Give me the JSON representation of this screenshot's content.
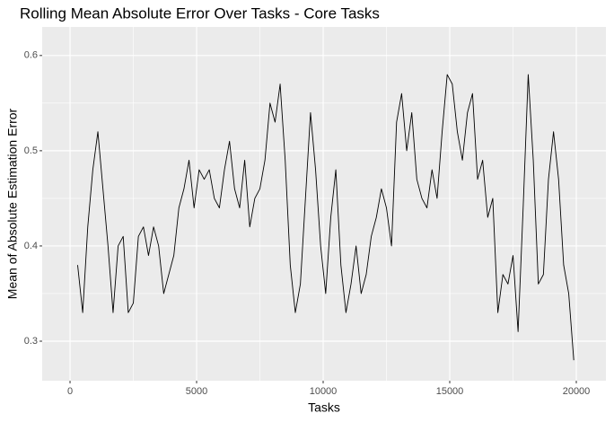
{
  "chart_data": {
    "type": "line",
    "title": "Rolling Mean Absolute Error Over Tasks - Core Tasks",
    "x_label": "Tasks",
    "y_label": "Mean of Absolute Estimation Error",
    "color": "#000000",
    "grid": true,
    "x": [
      300,
      500,
      700,
      900,
      1100,
      1300,
      1500,
      1700,
      1900,
      2100,
      2300,
      2500,
      2700,
      2900,
      3100,
      3300,
      3500,
      3700,
      3900,
      4100,
      4300,
      4500,
      4700,
      4900,
      5100,
      5300,
      5500,
      5700,
      5900,
      6100,
      6300,
      6500,
      6700,
      6900,
      7100,
      7300,
      7500,
      7700,
      7900,
      8100,
      8300,
      8500,
      8700,
      8900,
      9100,
      9300,
      9500,
      9700,
      9900,
      10100,
      10300,
      10500,
      10700,
      10900,
      11100,
      11300,
      11500,
      11700,
      11900,
      12100,
      12300,
      12500,
      12700,
      12900,
      13100,
      13300,
      13500,
      13700,
      13900,
      14100,
      14300,
      14500,
      14700,
      14900,
      15100,
      15300,
      15500,
      15700,
      15900,
      16100,
      16300,
      16500,
      16700,
      16900,
      17100,
      17300,
      17500,
      17700,
      17900,
      18100,
      18300,
      18500,
      18700,
      18900,
      19100,
      19300,
      19500,
      19700,
      19900
    ],
    "values": [
      0.38,
      0.33,
      0.42,
      0.48,
      0.52,
      0.46,
      0.4,
      0.33,
      0.4,
      0.41,
      0.33,
      0.34,
      0.41,
      0.42,
      0.39,
      0.42,
      0.4,
      0.35,
      0.37,
      0.39,
      0.44,
      0.46,
      0.49,
      0.44,
      0.48,
      0.47,
      0.48,
      0.45,
      0.44,
      0.48,
      0.51,
      0.46,
      0.44,
      0.49,
      0.42,
      0.45,
      0.46,
      0.49,
      0.55,
      0.53,
      0.57,
      0.49,
      0.38,
      0.33,
      0.36,
      0.45,
      0.54,
      0.48,
      0.4,
      0.35,
      0.43,
      0.48,
      0.38,
      0.33,
      0.36,
      0.4,
      0.35,
      0.37,
      0.41,
      0.43,
      0.46,
      0.44,
      0.4,
      0.53,
      0.56,
      0.5,
      0.54,
      0.47,
      0.45,
      0.44,
      0.48,
      0.45,
      0.52,
      0.58,
      0.57,
      0.52,
      0.49,
      0.54,
      0.56,
      0.47,
      0.49,
      0.43,
      0.45,
      0.33,
      0.37,
      0.36,
      0.39,
      0.31,
      0.44,
      0.58,
      0.49,
      0.36,
      0.37,
      0.47,
      0.52,
      0.47,
      0.38,
      0.35,
      0.28
    ],
    "xlim": [
      -1100,
      21170
    ],
    "ylim": [
      0.2585,
      0.63
    ],
    "xticks": [
      0,
      5000,
      10000,
      15000,
      20000
    ],
    "yticks": [
      0.3,
      0.4,
      0.5,
      0.6
    ],
    "x_minor_ticks": [
      2500,
      7500,
      12500,
      17500
    ],
    "y_minor_ticks": [
      0.35,
      0.45,
      0.55
    ]
  }
}
